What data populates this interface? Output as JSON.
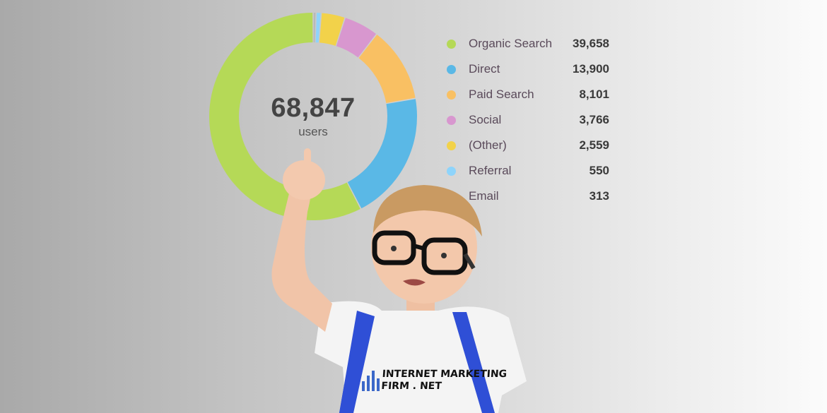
{
  "chart_data": {
    "type": "pie",
    "donut": true,
    "center_total": "68,847",
    "center_label": "users",
    "legend_position": "right",
    "categories": [
      "Organic Search",
      "Direct",
      "Paid Search",
      "Social",
      "(Other)",
      "Referral",
      "Email"
    ],
    "values": [
      39658,
      13900,
      8101,
      3766,
      2559,
      550,
      313
    ],
    "value_labels": [
      "39,658",
      "13,900",
      "8,101",
      "3,766",
      "2,559",
      "550",
      "313"
    ],
    "colors": [
      "#b5d957",
      "#5ab8e6",
      "#f9c063",
      "#d897cf",
      "#f2d24a",
      "#8ed4fb",
      "#b8b8b8"
    ]
  },
  "logo": {
    "line1": "INTERNET MARKETING",
    "line2": "FIRM . NET"
  }
}
